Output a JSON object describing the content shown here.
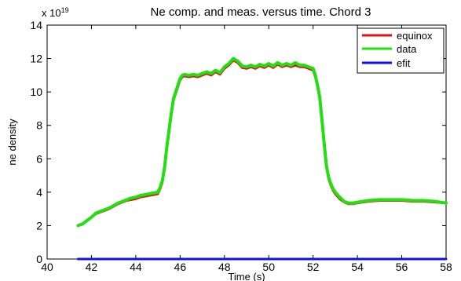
{
  "chart_data": {
    "type": "line",
    "title": "Ne comp. and meas. versus time. Chord 3",
    "xlabel": "Time (s)",
    "ylabel": "ne density",
    "y_exponent_label": "x 10",
    "y_exponent_power": "19",
    "xlim": [
      40,
      58
    ],
    "ylim": [
      0,
      14
    ],
    "xticks": [
      40,
      42,
      44,
      46,
      48,
      50,
      52,
      54,
      56,
      58
    ],
    "yticks": [
      0,
      2,
      4,
      6,
      8,
      10,
      12,
      14
    ],
    "grid": false,
    "legend_position": "top-right",
    "series": [
      {
        "name": "equinox",
        "color": "#e01010",
        "x": [
          41.4,
          41.6,
          41.8,
          42.0,
          42.2,
          42.4,
          42.6,
          42.8,
          43.0,
          43.2,
          43.4,
          43.6,
          43.8,
          44.0,
          44.2,
          44.4,
          44.6,
          44.8,
          45.0,
          45.1,
          45.2,
          45.3,
          45.4,
          45.5,
          45.6,
          45.7,
          45.8,
          45.9,
          46.0,
          46.1,
          46.2,
          46.4,
          46.6,
          46.8,
          47.0,
          47.2,
          47.4,
          47.6,
          47.8,
          48.0,
          48.2,
          48.4,
          48.6,
          48.8,
          49.0,
          49.2,
          49.4,
          49.6,
          49.8,
          50.0,
          50.2,
          50.4,
          50.6,
          50.8,
          51.0,
          51.2,
          51.4,
          51.6,
          51.8,
          52.0,
          52.1,
          52.2,
          52.3,
          52.4,
          52.5,
          52.6,
          52.7,
          52.8,
          52.9,
          53.0,
          53.2,
          53.4,
          53.6,
          53.8,
          54.0,
          54.5,
          55.0,
          55.5,
          56.0,
          56.5,
          57.0,
          57.5,
          58.0
        ],
        "values": [
          2.0,
          2.1,
          2.3,
          2.5,
          2.7,
          2.8,
          2.9,
          3.0,
          3.15,
          3.3,
          3.4,
          3.5,
          3.55,
          3.6,
          3.7,
          3.75,
          3.8,
          3.85,
          3.9,
          4.2,
          4.6,
          5.4,
          6.6,
          7.6,
          8.6,
          9.5,
          9.9,
          10.3,
          10.7,
          10.9,
          10.95,
          10.9,
          10.95,
          10.9,
          11.0,
          11.1,
          11.0,
          11.2,
          11.05,
          11.4,
          11.6,
          11.9,
          11.75,
          11.45,
          11.4,
          11.5,
          11.4,
          11.55,
          11.45,
          11.6,
          11.45,
          11.65,
          11.5,
          11.6,
          11.5,
          11.6,
          11.5,
          11.5,
          11.4,
          11.3,
          10.9,
          10.3,
          9.6,
          8.2,
          6.8,
          5.5,
          4.8,
          4.4,
          4.1,
          3.9,
          3.6,
          3.4,
          3.3,
          3.3,
          3.35,
          3.45,
          3.5,
          3.5,
          3.5,
          3.45,
          3.45,
          3.4,
          3.35
        ]
      },
      {
        "name": "data",
        "color": "#22e010",
        "x": [
          41.4,
          41.6,
          41.8,
          42.0,
          42.2,
          42.4,
          42.6,
          42.8,
          43.0,
          43.2,
          43.4,
          43.6,
          43.8,
          44.0,
          44.2,
          44.4,
          44.6,
          44.8,
          45.0,
          45.1,
          45.2,
          45.3,
          45.4,
          45.5,
          45.6,
          45.7,
          45.8,
          45.9,
          46.0,
          46.1,
          46.2,
          46.4,
          46.6,
          46.8,
          47.0,
          47.2,
          47.4,
          47.6,
          47.8,
          48.0,
          48.2,
          48.4,
          48.6,
          48.8,
          49.0,
          49.2,
          49.4,
          49.6,
          49.8,
          50.0,
          50.2,
          50.4,
          50.6,
          50.8,
          51.0,
          51.2,
          51.4,
          51.6,
          51.8,
          52.0,
          52.1,
          52.2,
          52.3,
          52.4,
          52.5,
          52.6,
          52.7,
          52.8,
          52.9,
          53.0,
          53.2,
          53.4,
          53.6,
          53.8,
          54.0,
          54.5,
          55.0,
          55.5,
          56.0,
          56.5,
          57.0,
          57.5,
          58.0
        ],
        "values": [
          2.0,
          2.1,
          2.3,
          2.5,
          2.75,
          2.85,
          2.95,
          3.05,
          3.2,
          3.35,
          3.45,
          3.55,
          3.65,
          3.7,
          3.8,
          3.85,
          3.9,
          3.95,
          4.0,
          4.3,
          4.7,
          5.5,
          6.7,
          7.7,
          8.7,
          9.6,
          10.0,
          10.4,
          10.8,
          11.0,
          11.05,
          11.0,
          11.05,
          11.0,
          11.1,
          11.2,
          11.1,
          11.3,
          11.15,
          11.5,
          11.7,
          12.0,
          11.85,
          11.55,
          11.5,
          11.6,
          11.5,
          11.65,
          11.55,
          11.7,
          11.55,
          11.75,
          11.6,
          11.7,
          11.6,
          11.75,
          11.6,
          11.6,
          11.5,
          11.4,
          11.0,
          10.4,
          9.7,
          8.3,
          6.9,
          5.6,
          4.9,
          4.5,
          4.2,
          4.0,
          3.7,
          3.45,
          3.35,
          3.35,
          3.4,
          3.5,
          3.55,
          3.55,
          3.55,
          3.5,
          3.5,
          3.45,
          3.35
        ]
      },
      {
        "name": "efit",
        "color": "#1010e0",
        "x": [
          41.4,
          58.0
        ],
        "values": [
          0.0,
          0.0
        ]
      }
    ]
  }
}
